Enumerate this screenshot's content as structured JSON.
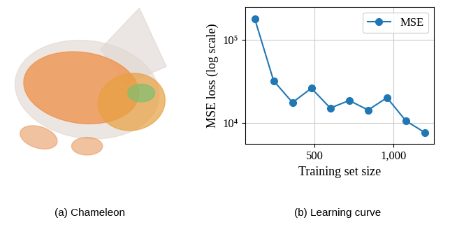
{
  "chart_data": {
    "type": "line",
    "x": [
      120,
      240,
      360,
      480,
      600,
      720,
      840,
      960,
      1080,
      1200
    ],
    "series": [
      {
        "name": "MSE",
        "color": "#1f77b4",
        "marker": "o",
        "values": [
          180000,
          32000,
          17500,
          26000,
          15000,
          18500,
          14200,
          20000,
          10500,
          7600
        ]
      }
    ],
    "xlabel": "Training set size",
    "ylabel": "MSE loss (log scale)",
    "xlim": [
      60,
      1260
    ],
    "xticks": [
      500,
      {
        "value": 1000,
        "label": "1,000"
      }
    ],
    "ylim": [
      5500,
      250000
    ],
    "yticks": [
      {
        "value": 10000,
        "label": "10⁴"
      },
      {
        "value": 100000,
        "label": "10⁵"
      }
    ],
    "log": "y",
    "grid": true,
    "legend": "upper right"
  },
  "captions": [
    "(a) Chameleon",
    "(b) Learning curve"
  ]
}
